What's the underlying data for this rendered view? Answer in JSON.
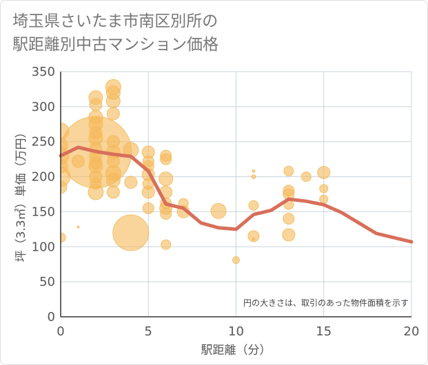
{
  "title_line1": "埼玉県さいたま市南区別所の",
  "title_line2": "駅距離別中古マンション価格",
  "note": "円の大きさは、取引のあった物件面積を示す",
  "colors": {
    "bubble": "#f5b95a",
    "line": "#d86f5a",
    "grid": "#c8d3dc",
    "axis": "#333333"
  },
  "chart_data": {
    "type": "scatter",
    "xlabel": "駅距離（分）",
    "ylabel": "坪（3.3㎡）単価（万円）",
    "xlim": [
      0,
      20
    ],
    "ylim": [
      0,
      350
    ],
    "xticks": [
      "0",
      "5",
      "10",
      "15",
      "20"
    ],
    "yticks": [
      "0",
      "50",
      "100",
      "150",
      "200",
      "250",
      "300",
      "350"
    ],
    "grid": true,
    "bubbles": [
      {
        "x": 0,
        "y": 265,
        "size": 12
      },
      {
        "x": 0,
        "y": 245,
        "size": 10
      },
      {
        "x": 0,
        "y": 230,
        "size": 12
      },
      {
        "x": 0,
        "y": 215,
        "size": 10
      },
      {
        "x": 0,
        "y": 200,
        "size": 14
      },
      {
        "x": 0,
        "y": 185,
        "size": 9
      },
      {
        "x": 0,
        "y": 113,
        "size": 7
      },
      {
        "x": 1,
        "y": 222,
        "size": 9
      },
      {
        "x": 1,
        "y": 128,
        "size": 1.5
      },
      {
        "x": 2,
        "y": 235,
        "size": 52
      },
      {
        "x": 2,
        "y": 313,
        "size": 10
      },
      {
        "x": 2,
        "y": 303,
        "size": 9
      },
      {
        "x": 2,
        "y": 285,
        "size": 10
      },
      {
        "x": 2,
        "y": 275,
        "size": 10
      },
      {
        "x": 2,
        "y": 263,
        "size": 9
      },
      {
        "x": 2,
        "y": 255,
        "size": 10
      },
      {
        "x": 2,
        "y": 240,
        "size": 9
      },
      {
        "x": 2,
        "y": 230,
        "size": 9
      },
      {
        "x": 2,
        "y": 220,
        "size": 9
      },
      {
        "x": 2,
        "y": 215,
        "size": 10
      },
      {
        "x": 2,
        "y": 200,
        "size": 9
      },
      {
        "x": 2,
        "y": 190,
        "size": 8
      },
      {
        "x": 2,
        "y": 178,
        "size": 11
      },
      {
        "x": 3,
        "y": 328,
        "size": 11
      },
      {
        "x": 3,
        "y": 320,
        "size": 10
      },
      {
        "x": 3,
        "y": 308,
        "size": 10
      },
      {
        "x": 3,
        "y": 290,
        "size": 9
      },
      {
        "x": 3,
        "y": 250,
        "size": 9
      },
      {
        "x": 3,
        "y": 235,
        "size": 10
      },
      {
        "x": 3,
        "y": 222,
        "size": 9
      },
      {
        "x": 3,
        "y": 205,
        "size": 11
      },
      {
        "x": 3,
        "y": 195,
        "size": 10
      },
      {
        "x": 3,
        "y": 178,
        "size": 9
      },
      {
        "x": 4,
        "y": 238,
        "size": 11
      },
      {
        "x": 4,
        "y": 192,
        "size": 9
      },
      {
        "x": 4,
        "y": 120,
        "size": 26
      },
      {
        "x": 5,
        "y": 235,
        "size": 9
      },
      {
        "x": 5,
        "y": 222,
        "size": 8
      },
      {
        "x": 5,
        "y": 215,
        "size": 8
      },
      {
        "x": 5,
        "y": 203,
        "size": 9
      },
      {
        "x": 5,
        "y": 190,
        "size": 8
      },
      {
        "x": 5,
        "y": 178,
        "size": 9
      },
      {
        "x": 5,
        "y": 155,
        "size": 8
      },
      {
        "x": 6,
        "y": 230,
        "size": 8
      },
      {
        "x": 6,
        "y": 225,
        "size": 8
      },
      {
        "x": 6,
        "y": 197,
        "size": 10
      },
      {
        "x": 6,
        "y": 178,
        "size": 9
      },
      {
        "x": 6,
        "y": 162,
        "size": 8
      },
      {
        "x": 6,
        "y": 155,
        "size": 9
      },
      {
        "x": 6,
        "y": 147,
        "size": 8
      },
      {
        "x": 6,
        "y": 103,
        "size": 7
      },
      {
        "x": 7,
        "y": 162,
        "size": 7
      },
      {
        "x": 7,
        "y": 150,
        "size": 9
      },
      {
        "x": 9,
        "y": 151,
        "size": 11
      },
      {
        "x": 10,
        "y": 81,
        "size": 5
      },
      {
        "x": 11,
        "y": 208,
        "size": 2
      },
      {
        "x": 11,
        "y": 200,
        "size": 3
      },
      {
        "x": 11,
        "y": 159,
        "size": 7
      },
      {
        "x": 11,
        "y": 115,
        "size": 8
      },
      {
        "x": 11,
        "y": 111,
        "size": 2
      },
      {
        "x": 13,
        "y": 208,
        "size": 7
      },
      {
        "x": 13,
        "y": 180,
        "size": 8
      },
      {
        "x": 13,
        "y": 175,
        "size": 8
      },
      {
        "x": 13,
        "y": 160,
        "size": 7
      },
      {
        "x": 13,
        "y": 140,
        "size": 8
      },
      {
        "x": 13,
        "y": 117,
        "size": 9
      },
      {
        "x": 14,
        "y": 200,
        "size": 7
      },
      {
        "x": 15,
        "y": 206,
        "size": 9
      },
      {
        "x": 15,
        "y": 183,
        "size": 6
      },
      {
        "x": 15,
        "y": 168,
        "size": 6
      }
    ],
    "series": [
      {
        "x": [
          0,
          1,
          2,
          3,
          4,
          5,
          6,
          7,
          8,
          9,
          10,
          11,
          12,
          13,
          14,
          15,
          16,
          17,
          18,
          19,
          20
        ],
        "values": [
          230,
          242,
          236,
          232,
          229,
          208,
          161,
          155,
          134,
          127,
          125,
          146,
          152,
          168,
          165,
          160,
          149,
          134,
          119,
          113,
          107
        ]
      }
    ]
  }
}
